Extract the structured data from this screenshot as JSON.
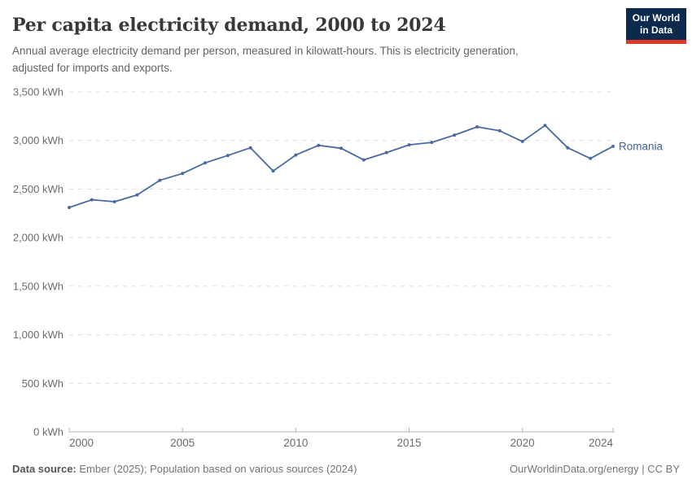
{
  "header": {
    "title": "Per capita electricity demand, 2000 to 2024",
    "subtitle_line1": "Annual average electricity demand per person, measured in kilowatt-hours. This is electricity generation,",
    "subtitle_line2": "adjusted for imports and exports.",
    "logo": {
      "line1": "Our World",
      "line2": "in Data"
    }
  },
  "chart_data": {
    "type": "line",
    "title": "Per capita electricity demand, 2000 to 2024",
    "entity_label": "Romania",
    "x": [
      2000,
      2001,
      2002,
      2003,
      2004,
      2005,
      2006,
      2007,
      2008,
      2009,
      2010,
      2011,
      2012,
      2013,
      2014,
      2015,
      2016,
      2017,
      2018,
      2019,
      2020,
      2021,
      2022,
      2023,
      2024
    ],
    "series": [
      {
        "name": "Romania",
        "values": [
          2310,
          2390,
          2370,
          2440,
          2590,
          2660,
          2770,
          2845,
          2925,
          2685,
          2850,
          2950,
          2920,
          2800,
          2875,
          2955,
          2980,
          3055,
          3140,
          3100,
          2990,
          3155,
          2925,
          2815,
          2940
        ]
      }
    ],
    "xlim": [
      2000,
      2024
    ],
    "ylim": [
      0,
      3500
    ],
    "x_ticks": [
      2000,
      2005,
      2010,
      2015,
      2020,
      2024
    ],
    "y_ticks": [
      0,
      500,
      1000,
      1500,
      2000,
      2500,
      3000,
      3500
    ],
    "y_tick_labels": [
      "0 kWh",
      "500 kWh",
      "1,000 kWh",
      "1,500 kWh",
      "2,000 kWh",
      "2,500 kWh",
      "3,000 kWh",
      "3,500 kWh"
    ],
    "unit": "kWh",
    "grid": "horizontal-dashed",
    "legend_position": "end-of-line-label"
  },
  "colors": {
    "line": "#4a69a2",
    "entity_label": "#3f639e",
    "grid": "#dcdcdc",
    "axis": "#b3b3b3",
    "tick_text": "#6b6b6b",
    "logo_bg": "#0c2a4e",
    "logo_accent": "#dc3a28"
  },
  "footer": {
    "source_label": "Data source:",
    "source_text": " Ember (2025); Population based on various sources (2024)",
    "rights": "OurWorldinData.org/energy | CC BY"
  }
}
